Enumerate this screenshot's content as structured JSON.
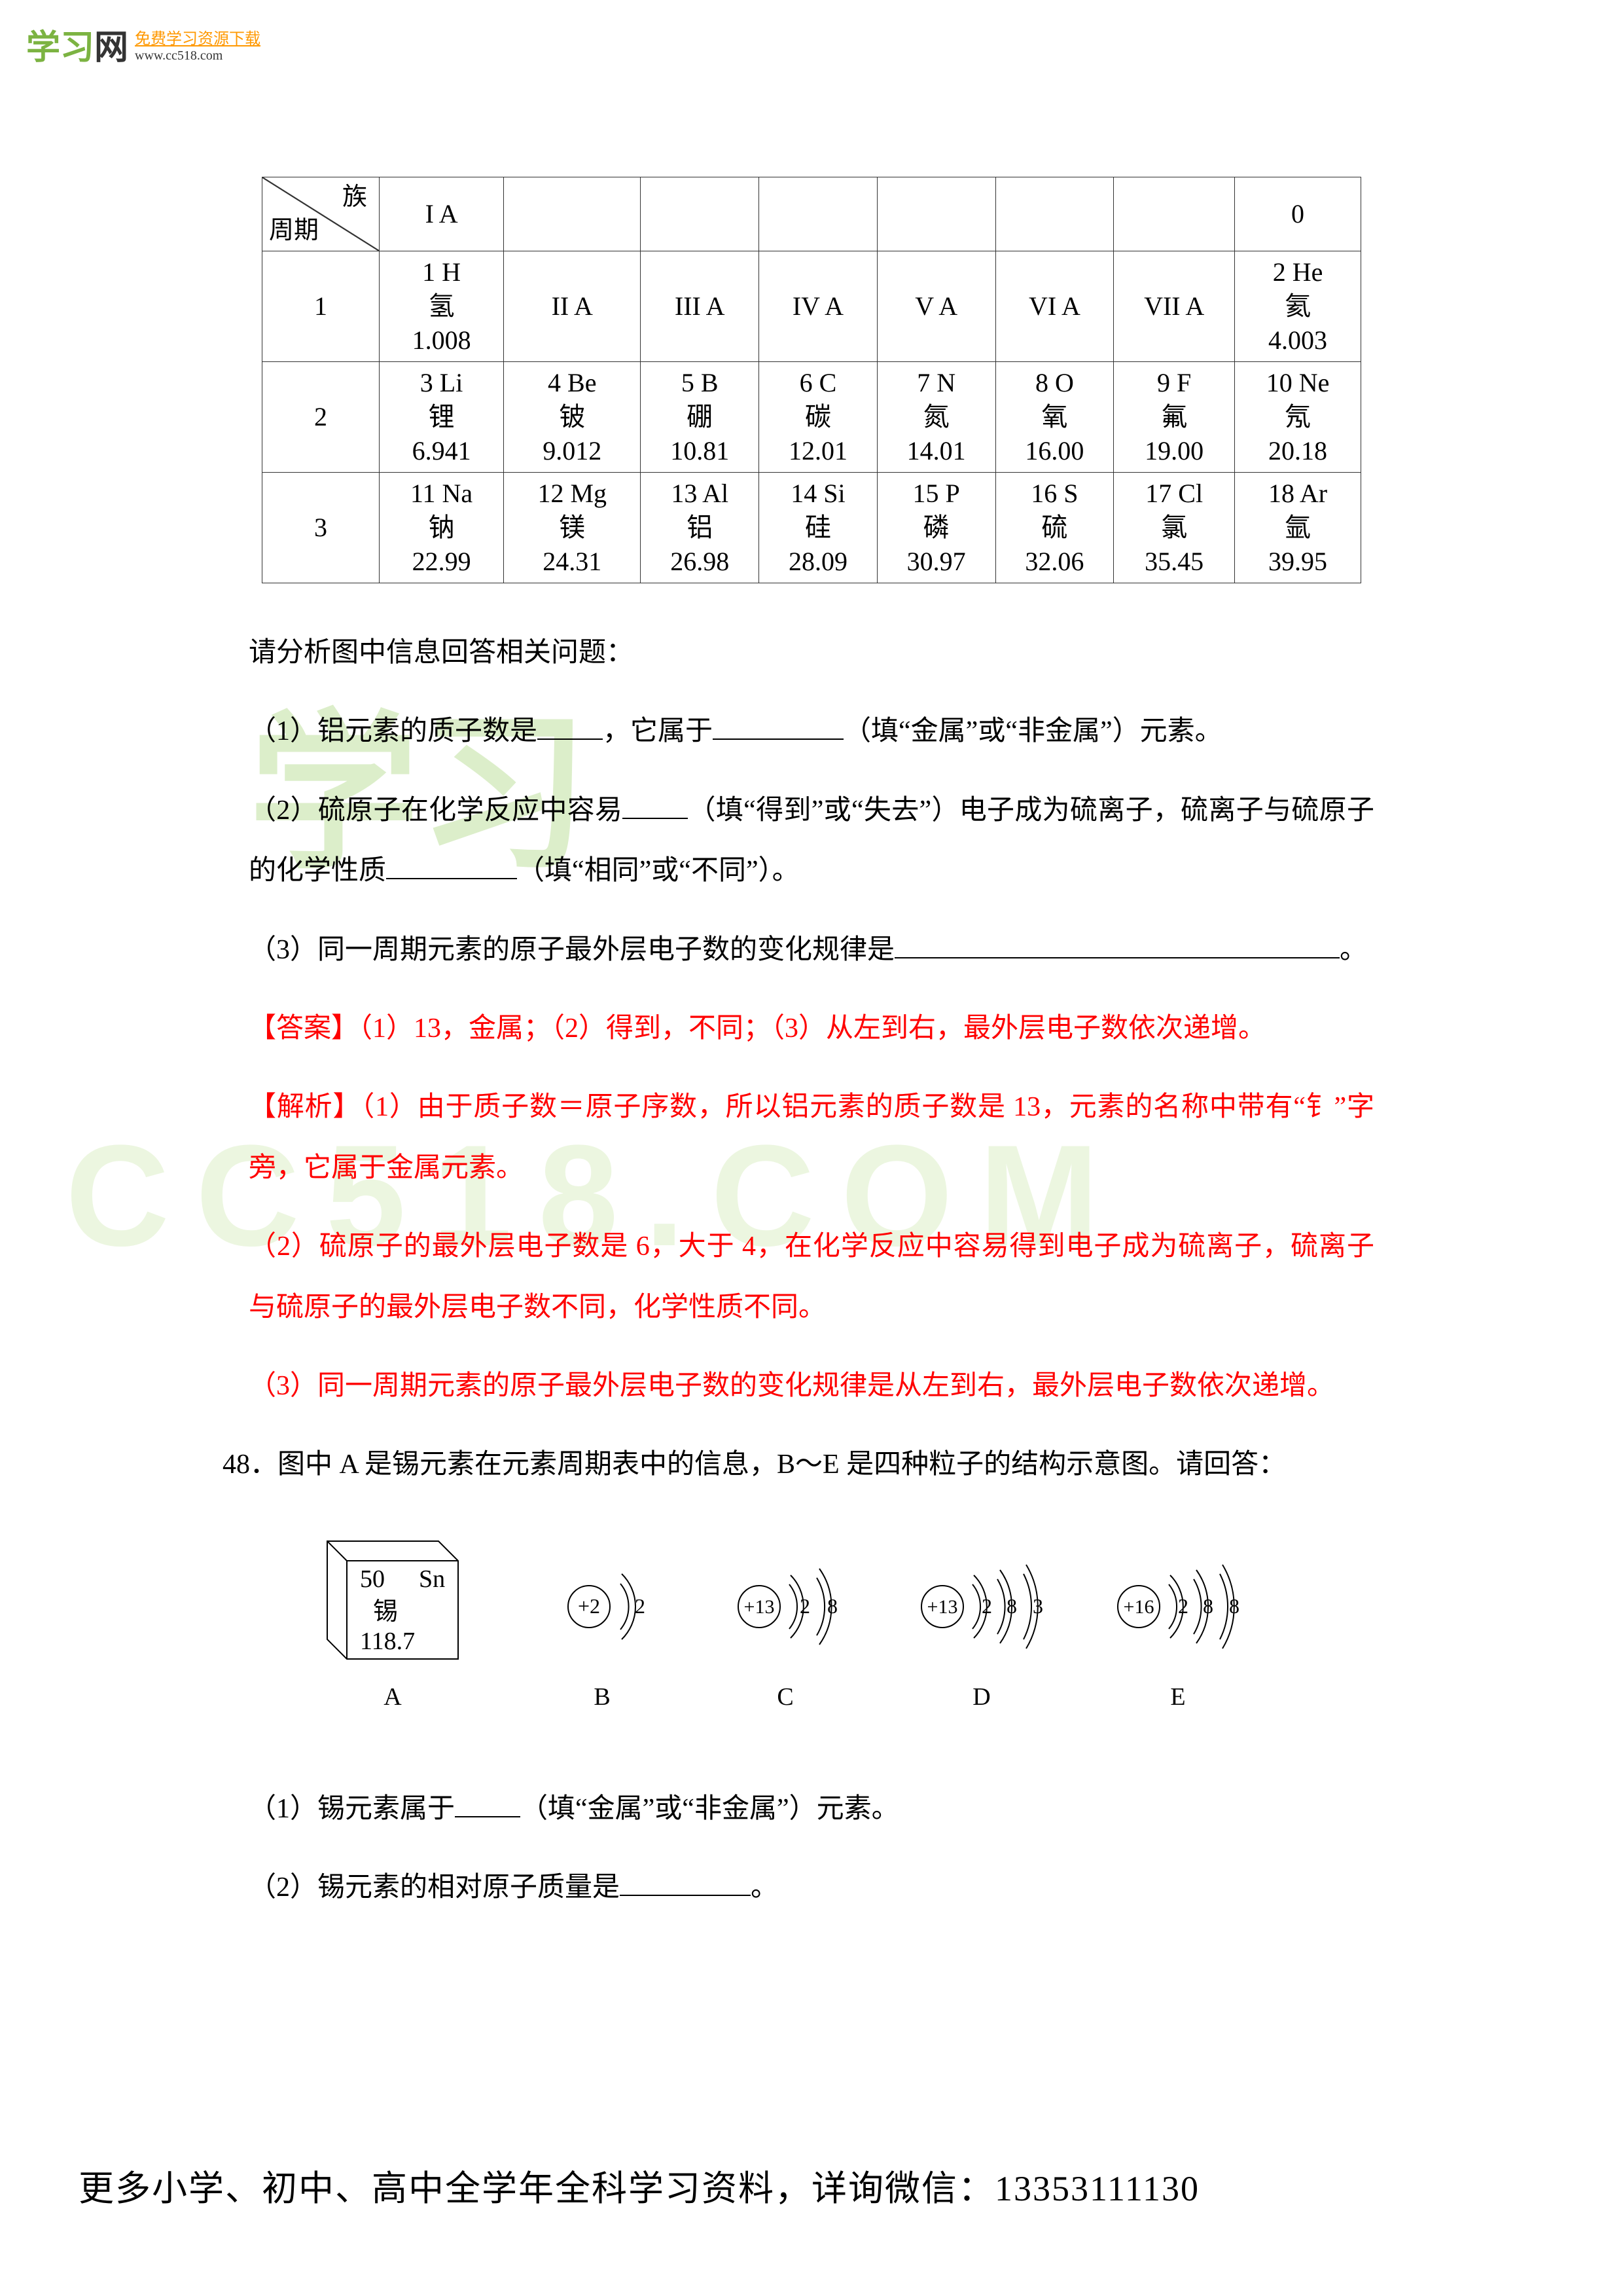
{
  "logo": {
    "main_prefix": "学习",
    "main_suffix": "网",
    "sub": "免费学习资源下载",
    "url": "www.cc518.com"
  },
  "periodic_table": {
    "header_group": "族",
    "header_period": "周期",
    "groups": [
      "I A",
      "",
      "",
      "",
      "",
      "",
      "",
      "0"
    ],
    "rows": [
      {
        "period": "1",
        "cells": [
          "1  H\n氢\n1.008",
          "II A",
          "III A",
          "IV A",
          "V A",
          "VI A",
          "VII A",
          "2  He\n氦\n4.003"
        ]
      },
      {
        "period": "2",
        "cells": [
          "3  Li\n锂\n6.941",
          "4  Be\n铍\n9.012",
          "5  B\n硼\n10.81",
          "6  C\n碳\n12.01",
          "7  N\n氮\n14.01",
          "8  O\n氧\n16.00",
          "9  F\n氟\n19.00",
          "10  Ne\n氖\n20.18"
        ]
      },
      {
        "period": "3",
        "cells": [
          "11  Na\n钠\n22.99",
          "12  Mg\n镁\n24.31",
          "13  Al\n铝\n26.98",
          "14  Si\n硅\n28.09",
          "15  P\n磷\n30.97",
          "16  S\n硫\n32.06",
          "17  Cl\n氯\n35.45",
          "18  Ar\n氩\n39.95"
        ]
      }
    ]
  },
  "text": {
    "intro": "请分析图中信息回答相关问题：",
    "q1_a": "（1）铝元素的质子数是",
    "q1_b": "，它属于",
    "q1_c": "（填“金属”或“非金属”）元素。",
    "q2_a": "（2）硫原子在化学反应中容易",
    "q2_b": "（填“得到”或“失去”）电子成为硫离子，硫离子与硫原子的化学性质",
    "q2_c": "（填“相同”或“不同”）。",
    "q3_a": "（3）同一周期元素的原子最外层电子数的变化规律是",
    "q3_end": "。",
    "answer": "【答案】（1）13，金属；（2）得到，不同；（3）从左到右，最外层电子数依次递增。",
    "analysis1": "【解析】（1）由于质子数＝原子序数，所以铝元素的质子数是 13，元素的名称中带有“钅”字旁，它属于金属元素。",
    "analysis2": "（2）硫原子的最外层电子数是 6，大于 4，在化学反应中容易得到电子成为硫离子，硫离子与硫原子的最外层电子数不同，化学性质不同。",
    "analysis3": "（3）同一周期元素的原子最外层电子数的变化规律是从左到右，最外层电子数依次递增。",
    "q48": "48．图中 A 是锡元素在元素周期表中的信息，B～E 是四种粒子的结构示意图。请回答：",
    "q48_1a": "（1）锡元素属于",
    "q48_1b": "（填“金属”或“非金属”）元素。",
    "q48_2a": "（2）锡元素的相对原子质量是",
    "q48_2b": "。"
  },
  "element_box": {
    "num": "50",
    "sym": "Sn",
    "name": "锡",
    "mass": "118.7"
  },
  "atoms": {
    "B": {
      "nucleus": "+2",
      "shells": [
        "2"
      ]
    },
    "C": {
      "nucleus": "+13",
      "shells": [
        "2",
        "8"
      ]
    },
    "D": {
      "nucleus": "+13",
      "shells": [
        "2",
        "8",
        "3"
      ]
    },
    "E": {
      "nucleus": "+16",
      "shells": [
        "2",
        "8",
        "8"
      ]
    }
  },
  "labels": {
    "A": "A",
    "B": "B",
    "C": "C",
    "D": "D",
    "E": "E"
  },
  "watermark": {
    "wm1": "学习",
    "wm2": "CC518.COM"
  },
  "footer": "更多小学、初中、高中全学年全科学习资料，详询微信：13353111130",
  "colors": {
    "text": "#000000",
    "red": "#ff0000",
    "green": "#7cb342",
    "orange": "#ff9800",
    "wm_green": "rgba(140,200,80,0.3)"
  }
}
